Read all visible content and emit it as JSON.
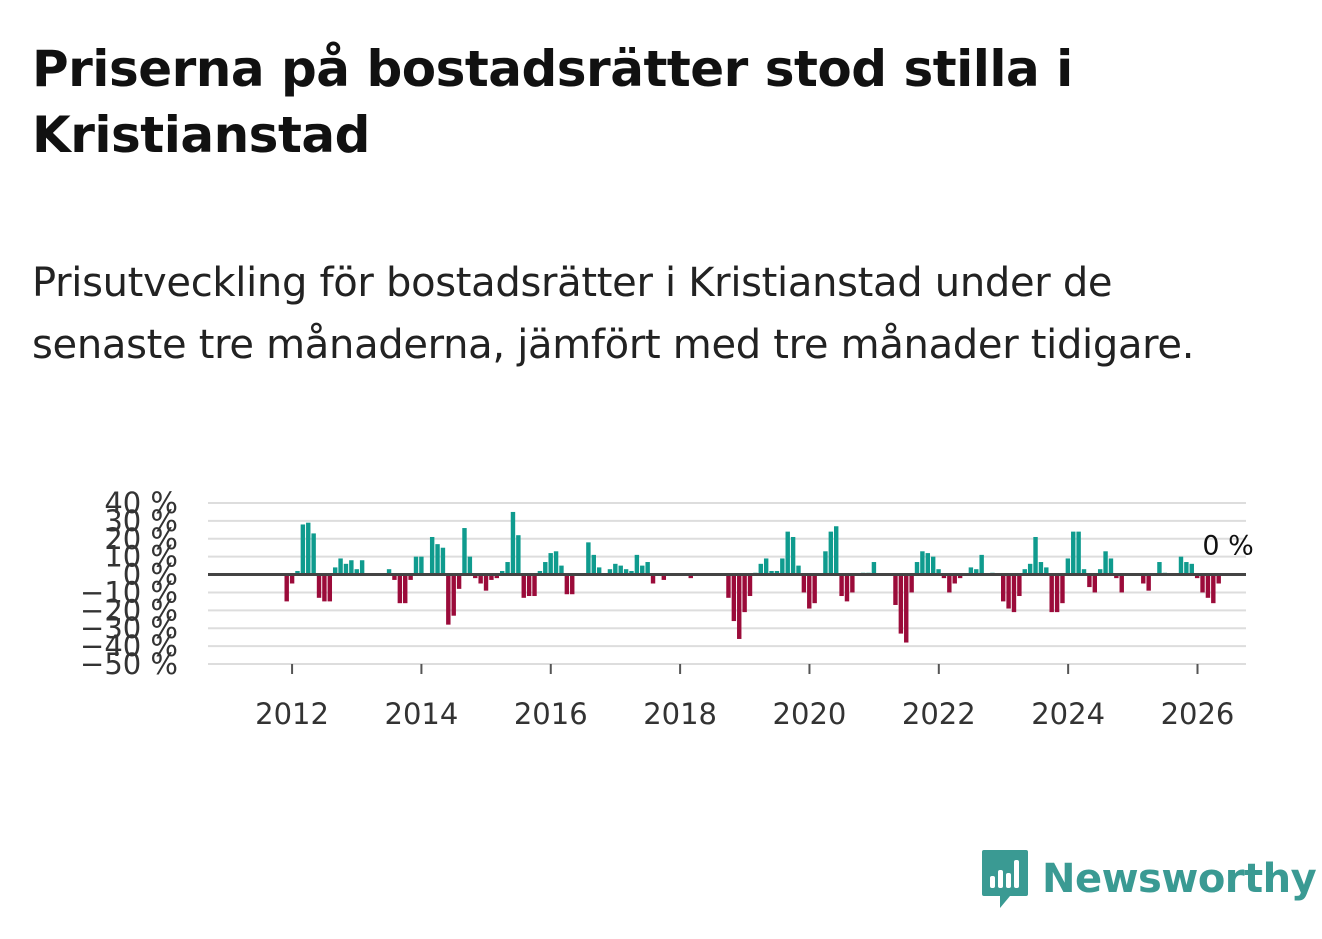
{
  "title": "Priserna på bostadsrätter stod stilla i Kristianstad",
  "subtitle": "Prisutveckling för bostadsrätter i Kristianstad under de senaste tre månaderna, jämfört med tre månader tidigare.",
  "brand": {
    "name": "Newsworthy",
    "color": "#3a9a93",
    "icon": "newsworthy-logo-icon"
  },
  "colors": {
    "positive": "#0f9b8e",
    "negative": "#9b0b3a",
    "grid": "#dddddd",
    "zero_line": "#444444"
  },
  "chart_data": {
    "type": "bar",
    "title": "Priserna på bostadsrätter stod stilla i Kristianstad",
    "xlabel": "",
    "ylabel": "",
    "ylim": [
      -50,
      40
    ],
    "yticks": [
      40,
      30,
      20,
      10,
      0,
      -10,
      -20,
      -30,
      -40,
      -50
    ],
    "ytick_labels": [
      "40 %",
      "30 %",
      "20 %",
      "10 %",
      "0 %",
      "−10 %",
      "−20 %",
      "−30 %",
      "−40 %",
      "−50 %"
    ],
    "xticks": [
      2012,
      2014,
      2016,
      2018,
      2020,
      2022,
      2024,
      2026
    ],
    "xlim": [
      2010.7,
      2026.75
    ],
    "start": 2011.917,
    "step": 0.0833,
    "last_label": "0 %",
    "values": [
      -15,
      -5,
      2,
      28,
      29,
      23,
      -13,
      -15,
      -15,
      4,
      9,
      6,
      8,
      3,
      8,
      0,
      0,
      0,
      0,
      3,
      -3,
      -16,
      -16,
      -3,
      10,
      10,
      0,
      21,
      17,
      15,
      -28,
      -23,
      -8,
      26,
      10,
      -2,
      -5,
      -9,
      -3,
      -2,
      2,
      7,
      35,
      22,
      -13,
      -12,
      -12,
      2,
      7,
      12,
      13,
      5,
      -11,
      -11,
      0,
      0,
      18,
      11,
      4,
      0,
      3,
      6,
      5,
      3,
      2,
      11,
      5,
      7,
      -5,
      0,
      -3,
      0,
      0,
      0,
      0,
      -2,
      0,
      0,
      0,
      0,
      0,
      0,
      -13,
      -26,
      -36,
      -21,
      -12,
      1,
      6,
      9,
      2,
      2,
      9,
      24,
      21,
      5,
      -10,
      -19,
      -16,
      0,
      13,
      24,
      27,
      -12,
      -15,
      -10,
      0,
      1,
      1,
      7,
      0,
      0,
      0,
      -17,
      -33,
      -38,
      -10,
      7,
      13,
      12,
      10,
      3,
      -2,
      -10,
      -5,
      -2,
      0,
      4,
      3,
      11,
      0,
      1,
      0,
      -15,
      -19,
      -21,
      -12,
      3,
      6,
      21,
      7,
      4,
      -21,
      -21,
      -16,
      9,
      24,
      24,
      3,
      -7,
      -10,
      3,
      13,
      9,
      -2,
      -10,
      0,
      0,
      0,
      -5,
      -9,
      0,
      7,
      1,
      0,
      0,
      10,
      7,
      6,
      -2,
      -10,
      -13,
      -16,
      -5,
      0
    ]
  }
}
